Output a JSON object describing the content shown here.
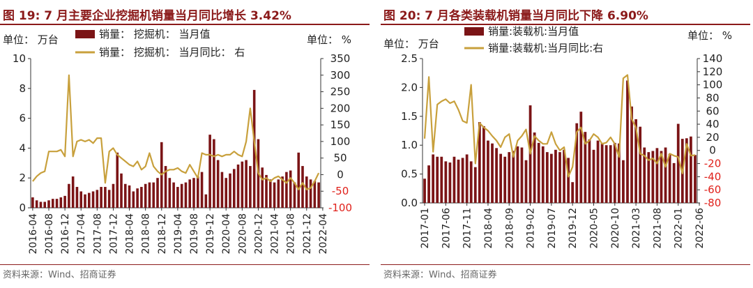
{
  "panels": [
    {
      "title": "图 19:  7 月主要企业挖掘机销量当月同比增长 3.42%",
      "source": "资料来源：Wind、招商证券",
      "colors": {
        "bar": "#7b1416",
        "line": "#c8a03c",
        "right_axis": "#e0201a",
        "title": "#8b1a1a"
      },
      "chart_data": {
        "type": "bar",
        "left_unit": "单位：  万台",
        "right_unit": "单位：  %",
        "legend": [
          "销量：  挖掘机：  当月值",
          "销量：  挖掘机：  当月同比：  右"
        ],
        "ylim_left": [
          0,
          10
        ],
        "yticks_left": [
          "0",
          "2",
          "4",
          "6",
          "8",
          "10"
        ],
        "ylim_right": [
          -100,
          350
        ],
        "yticks_right": [
          "-100",
          "-50",
          "0",
          "50",
          "100",
          "150",
          "200",
          "250",
          "300",
          "350"
        ],
        "x_start": "2016-04",
        "xtick_labels": [
          "2016-04",
          "2016-08",
          "2016-12",
          "2017-04",
          "2017-08",
          "2017-12",
          "2018-04",
          "2018-08",
          "2018-12",
          "2019-04",
          "2019-08",
          "2019-12",
          "2020-04",
          "2020-08",
          "2020-12",
          "2021-04",
          "2021-08",
          "2021-12",
          "2022-04"
        ],
        "series": [
          {
            "name": "销量：挖掘机：当月值",
            "type": "bar",
            "values": [
              0.7,
              0.5,
              0.4,
              0.4,
              0.5,
              0.6,
              0.6,
              0.7,
              0.8,
              1.6,
              2.1,
              1.4,
              1.1,
              0.9,
              1.0,
              1.1,
              1.2,
              1.4,
              1.4,
              1.2,
              1.6,
              3.7,
              2.3,
              1.6,
              1.5,
              1.1,
              1.3,
              1.4,
              1.6,
              1.7,
              1.7,
              2.0,
              4.4,
              2.8,
              2.0,
              1.7,
              1.4,
              1.6,
              1.7,
              1.9,
              2.0,
              2.1,
              2.4,
              0.9,
              4.9,
              4.6,
              3.2,
              2.4,
              2.0,
              2.3,
              2.6,
              2.9,
              3.1,
              3.2,
              2.8,
              7.9,
              4.6,
              2.7,
              2.2,
              1.9,
              1.7,
              1.9,
              2.1,
              2.4,
              2.5,
              1.7,
              3.7,
              2.8,
              2.1,
              1.9,
              1.8,
              1.7
            ]
          },
          {
            "name": "销量：挖掘机：当月同比：右",
            "type": "line",
            "values": [
              -20,
              -5,
              5,
              10,
              70,
              70,
              70,
              75,
              55,
              300,
              55,
              100,
              105,
              100,
              105,
              95,
              110,
              110,
              -25,
              70,
              80,
              60,
              50,
              40,
              30,
              25,
              40,
              15,
              25,
              65,
              25,
              10,
              0,
              10,
              15,
              15,
              20,
              10,
              5,
              30,
              10,
              -10,
              65,
              60,
              60,
              55,
              60,
              55,
              60,
              60,
              70,
              60,
              55,
              100,
              200,
              100,
              5,
              -15,
              -10,
              -20,
              -10,
              -5,
              -15,
              -25,
              -10,
              -25,
              -45,
              -25,
              -45,
              -40,
              -20,
              5
            ]
          }
        ]
      }
    },
    {
      "title": "图 20:  7 月各类装载机销量当月同比下降 6.90%",
      "source": "资料来源：Wind、招商证券",
      "colors": {
        "bar": "#7b1416",
        "line": "#c8a03c",
        "right_axis": "#e0201a",
        "title": "#8b1a1a"
      },
      "chart_data": {
        "type": "bar",
        "left_unit": "单位：  万台",
        "right_unit": "单位：  %",
        "legend": [
          "销量:装载机:当月值",
          "销量:装载机:当月同比:右"
        ],
        "ylim_left": [
          0,
          2.5
        ],
        "yticks_left": [
          "0.0",
          "0.5",
          "1.0",
          "1.5",
          "2.0",
          "2.5"
        ],
        "ylim_right": [
          -80,
          140
        ],
        "yticks_right": [
          "-80",
          "-60",
          "-40",
          "-20",
          "0",
          "20",
          "40",
          "60",
          "80",
          "100",
          "120",
          "140"
        ],
        "x_start": "2017-01",
        "xtick_labels": [
          "2017-01",
          "2017-06",
          "2017-11",
          "2018-04",
          "2018-09",
          "2019-02",
          "2019-07",
          "2019-12",
          "2020-05",
          "2020-10",
          "2021-03",
          "2021-08",
          "2022-01",
          "2022-06"
        ],
        "series": [
          {
            "name": "销量:装载机:当月值",
            "type": "bar",
            "values": [
              0.42,
              0.65,
              0.84,
              0.8,
              0.8,
              0.72,
              0.7,
              0.8,
              0.75,
              0.78,
              0.84,
              0.72,
              0.62,
              1.4,
              1.33,
              1.08,
              1.03,
              0.95,
              0.85,
              0.8,
              0.88,
              0.9,
              0.98,
              0.96,
              0.74,
              1.69,
              1.22,
              1.04,
              0.98,
              0.88,
              0.85,
              0.92,
              0.88,
              0.92,
              0.78,
              0.36,
              1.38,
              1.58,
              1.23,
              1.1,
              0.92,
              1.08,
              1.04,
              1.0,
              1.0,
              1.04,
              1.03,
              0.74,
              2.12,
              1.67,
              1.45,
              1.32,
              0.96,
              0.88,
              0.9,
              0.95,
              0.9,
              0.96,
              0.85,
              0.69,
              1.37,
              1.11,
              1.12,
              1.15,
              0.83
            ]
          },
          {
            "name": "销量:装载机:当月同比:右",
            "type": "line",
            "values": [
              18,
              112,
              -2,
              70,
              75,
              78,
              72,
              75,
              62,
              45,
              42,
              100,
              -20,
              42,
              35,
              30,
              22,
              15,
              5,
              20,
              25,
              -10,
              15,
              22,
              32,
              -5,
              22,
              15,
              10,
              10,
              28,
              10,
              0,
              5,
              -40,
              -25,
              28,
              35,
              10,
              15,
              25,
              20,
              10,
              12,
              20,
              10,
              -10,
              110,
              115,
              48,
              35,
              -5,
              -8,
              -15,
              -12,
              -20,
              -5,
              -25,
              -5,
              -8,
              -10,
              -35,
              10,
              -8,
              -7
            ]
          }
        ]
      }
    }
  ]
}
